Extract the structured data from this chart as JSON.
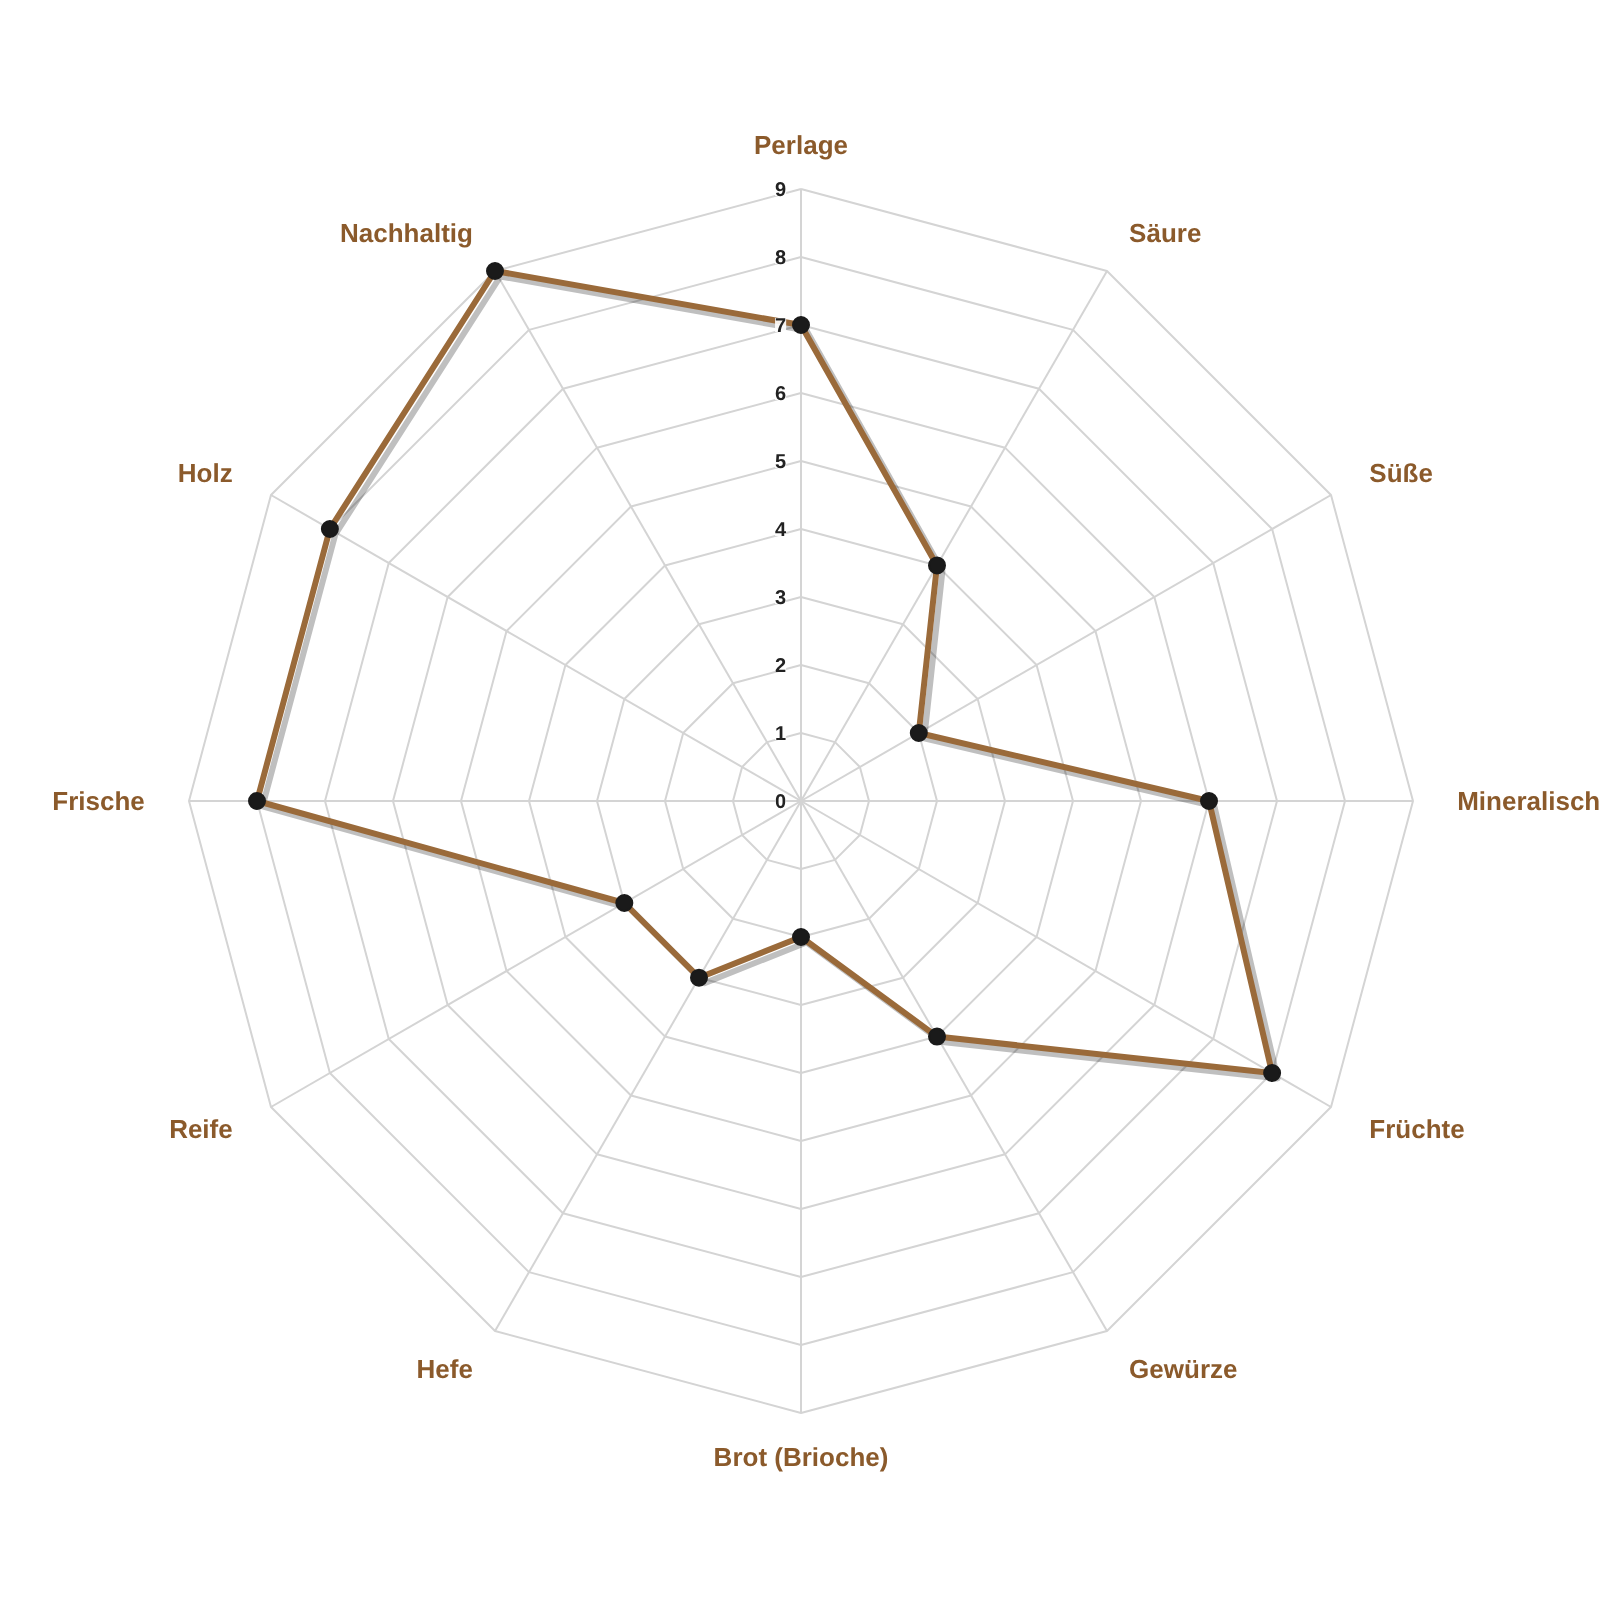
{
  "chart_data": {
    "type": "radar",
    "categories": [
      "Perlage",
      "Säure",
      "Süße",
      "Mineralisch",
      "Früchte",
      "Gewürze",
      "Brot (Brioche)",
      "Hefe",
      "Reife",
      "Frische",
      "Holz",
      "Nachhaltig"
    ],
    "series": [
      {
        "color": "#9a6a3a",
        "values": [
          7,
          4,
          2,
          6,
          8,
          4,
          2,
          3,
          3,
          8,
          8,
          9
        ]
      }
    ],
    "ylim": [
      0,
      9
    ],
    "yticks": [
      0,
      1,
      2,
      3,
      4,
      5,
      6,
      7,
      8,
      9
    ],
    "grid": true,
    "marker": "circle"
  }
}
